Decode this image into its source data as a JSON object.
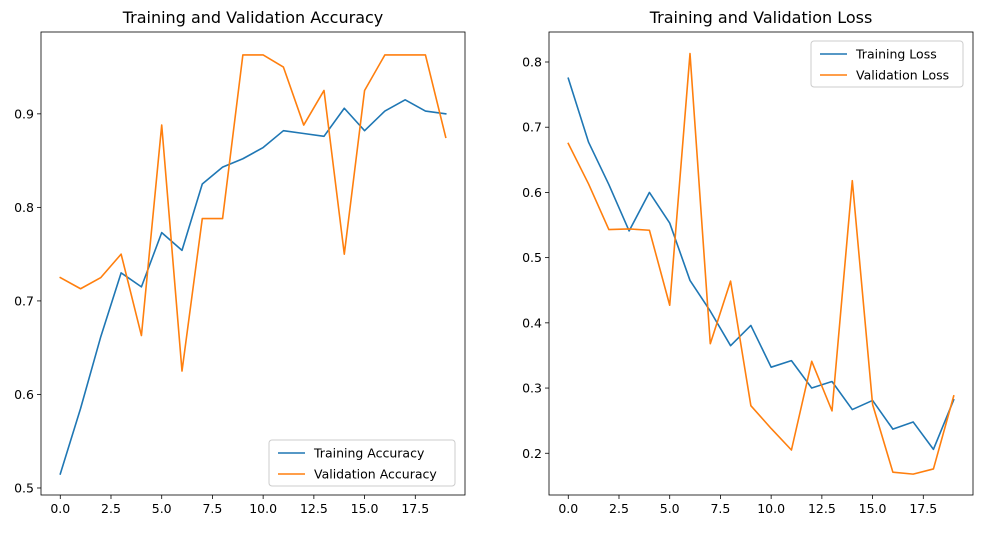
{
  "chart_data": [
    {
      "type": "line",
      "title": "Training and Validation Accuracy",
      "xlabel": "",
      "ylabel": "",
      "xlim": [
        -0.95,
        19.95
      ],
      "ylim": [
        0.4925,
        0.9875
      ],
      "xticks": [
        0.0,
        2.5,
        5.0,
        7.5,
        10.0,
        12.5,
        15.0,
        17.5
      ],
      "xtick_labels": [
        "0.0",
        "2.5",
        "5.0",
        "7.5",
        "10.0",
        "12.5",
        "15.0",
        "17.5"
      ],
      "yticks": [
        0.5,
        0.6,
        0.7,
        0.8,
        0.9
      ],
      "ytick_labels": [
        "0.5",
        "0.6",
        "0.7",
        "0.8",
        "0.9"
      ],
      "grid": false,
      "legend": "lower-right",
      "x": [
        0,
        1,
        2,
        3,
        4,
        5,
        6,
        7,
        8,
        9,
        10,
        11,
        12,
        13,
        14,
        15,
        16,
        17,
        18,
        19
      ],
      "series": [
        {
          "name": "Training Accuracy",
          "color": "#1f77b4",
          "values": [
            0.515,
            0.585,
            0.662,
            0.73,
            0.715,
            0.773,
            0.754,
            0.825,
            0.843,
            0.852,
            0.864,
            0.882,
            0.879,
            0.876,
            0.906,
            0.882,
            0.903,
            0.915,
            0.903,
            0.9
          ]
        },
        {
          "name": "Validation Accuracy",
          "color": "#ff7f0e",
          "values": [
            0.725,
            0.713,
            0.725,
            0.75,
            0.663,
            0.888,
            0.625,
            0.788,
            0.788,
            0.963,
            0.963,
            0.95,
            0.888,
            0.925,
            0.75,
            0.925,
            0.963,
            0.963,
            0.963,
            0.875
          ]
        }
      ]
    },
    {
      "type": "line",
      "title": "Training and Validation Loss",
      "xlabel": "",
      "ylabel": "",
      "xlim": [
        -0.95,
        19.95
      ],
      "ylim": [
        0.136,
        0.846
      ],
      "xticks": [
        0.0,
        2.5,
        5.0,
        7.5,
        10.0,
        12.5,
        15.0,
        17.5
      ],
      "xtick_labels": [
        "0.0",
        "2.5",
        "5.0",
        "7.5",
        "10.0",
        "12.5",
        "15.0",
        "17.5"
      ],
      "yticks": [
        0.2,
        0.3,
        0.4,
        0.5,
        0.6,
        0.7,
        0.8
      ],
      "ytick_labels": [
        "0.2",
        "0.3",
        "0.4",
        "0.5",
        "0.6",
        "0.7",
        "0.8"
      ],
      "grid": false,
      "legend": "upper-right",
      "x": [
        0,
        1,
        2,
        3,
        4,
        5,
        6,
        7,
        8,
        9,
        10,
        11,
        12,
        13,
        14,
        15,
        16,
        17,
        18,
        19
      ],
      "series": [
        {
          "name": "Training Loss",
          "color": "#1f77b4",
          "values": [
            0.775,
            0.677,
            0.612,
            0.541,
            0.6,
            0.553,
            0.465,
            0.418,
            0.365,
            0.396,
            0.332,
            0.342,
            0.3,
            0.31,
            0.267,
            0.281,
            0.237,
            0.248,
            0.206,
            0.282
          ]
        },
        {
          "name": "Validation Loss",
          "color": "#ff7f0e",
          "values": [
            0.675,
            0.613,
            0.543,
            0.544,
            0.542,
            0.427,
            0.813,
            0.368,
            0.464,
            0.273,
            0.238,
            0.205,
            0.341,
            0.265,
            0.618,
            0.275,
            0.171,
            0.168,
            0.176,
            0.288
          ]
        }
      ]
    }
  ]
}
